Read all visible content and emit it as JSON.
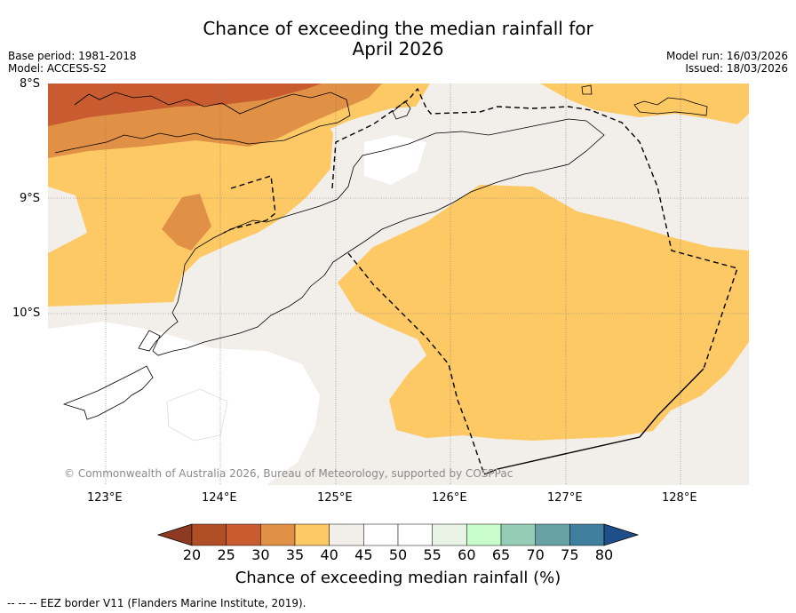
{
  "title": {
    "line1": "Chance of exceeding the median rainfall for",
    "line2": "April 2026"
  },
  "meta_left": {
    "base_period": "Base period: 1981-2018",
    "model": "Model: ACCESS-S2"
  },
  "meta_right": {
    "model_run": "Model run: 16/03/2026",
    "issued": "Issued: 18/03/2026"
  },
  "map": {
    "lat_labels": [
      "8°S",
      "9°S",
      "10°S"
    ],
    "lon_labels": [
      "123°E",
      "124°E",
      "125°E",
      "126°E",
      "127°E",
      "128°E"
    ],
    "copyright": "© Commonwealth of Australia 2026, Bureau of Meteorology, supported by COSPPac",
    "colors": {
      "p25_30": "#c85b2f",
      "p30_35": "#e09146",
      "p35_40": "#fdc965",
      "p40_45": "#f2eeea",
      "p45_55": "#ffffff"
    }
  },
  "colorbar": {
    "ticks": [
      "20",
      "25",
      "30",
      "35",
      "40",
      "45",
      "50",
      "55",
      "60",
      "65",
      "70",
      "75",
      "80"
    ],
    "colors": [
      "#b04f25",
      "#c85b2f",
      "#e09146",
      "#fdc965",
      "#f2eeea",
      "#ffffff",
      "#ffffff",
      "#e9f3e6",
      "#c8fcc9",
      "#95ccb6",
      "#67a1a5",
      "#3f7e9d"
    ],
    "under_color": "#8e3a22",
    "over_color": "#1e4f8a",
    "label": "Chance of exceeding median rainfall (%)"
  },
  "footer": "--  --  -- EEZ border V11 (Flanders Marine Institute, 2019)."
}
